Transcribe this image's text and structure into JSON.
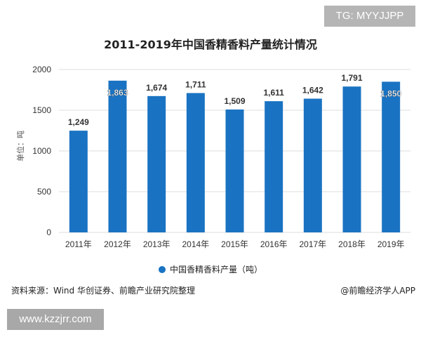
{
  "watermark_tg": "TG: MYYJJPP",
  "footer_url": "www.kzzjrr.com",
  "source": "资料来源：Wind 华创证券、前瞻产业研究院整理",
  "credit": "@前瞻经济学人APP",
  "colors": {
    "bar": "#1a73c2"
  },
  "chart_data": {
    "type": "bar",
    "title": "2011-2019年中国香精香料产量统计情况",
    "ylabel": "单位：吨",
    "xlabel": "",
    "categories": [
      "2011年",
      "2012年",
      "2013年",
      "2014年",
      "2015年",
      "2016年",
      "2017年",
      "2018年",
      "2019年"
    ],
    "series": [
      {
        "name": "中国香精香料产量（吨）",
        "values": [
          1249,
          1863,
          1674,
          1711,
          1509,
          1611,
          1642,
          1791,
          1850
        ]
      }
    ],
    "data_labels": [
      "1,249",
      "1,863",
      "1,674",
      "1,711",
      "1,509",
      "1,611",
      "1,642",
      "1,791",
      "1,850"
    ],
    "ylim": [
      0,
      2000
    ],
    "yticks": [
      0,
      500,
      1000,
      1500,
      2000
    ],
    "grid": true,
    "legend": "bottom"
  }
}
